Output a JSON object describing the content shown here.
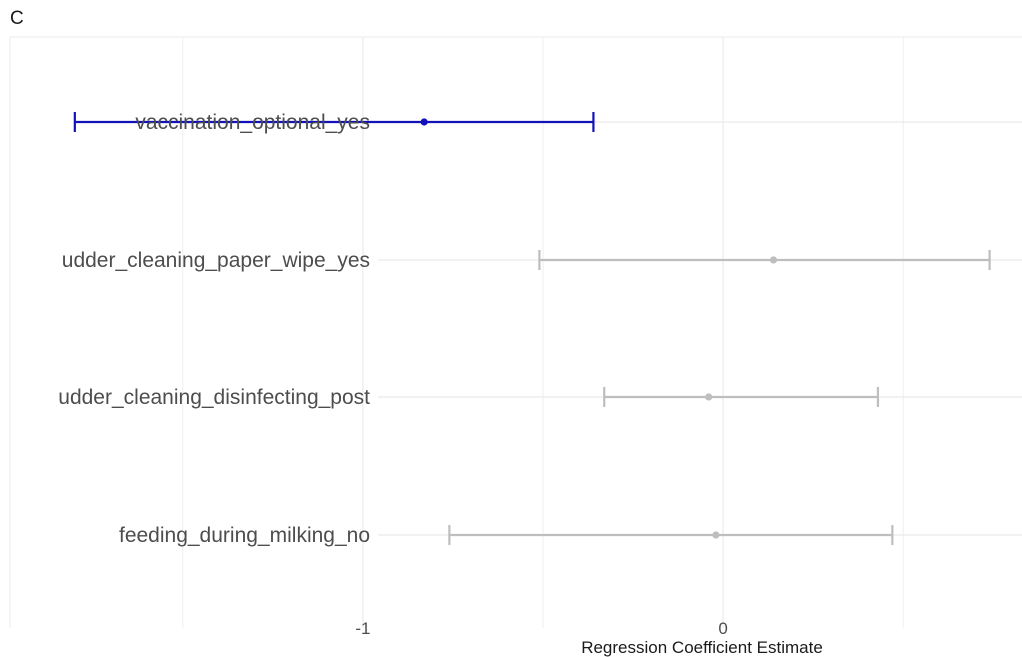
{
  "panel_label": "C",
  "chart_data": {
    "type": "forest",
    "title": "",
    "xlabel": "Regression Coefficient Estimate",
    "ylabel": "",
    "xlim": [
      -1.98,
      0.83
    ],
    "xticks": [
      -1,
      0
    ],
    "xtick_labels": [
      "-1",
      "0"
    ],
    "grid": true,
    "colors": {
      "significant": "#1212b8",
      "nonsignificant": "#bebebe",
      "grid": "#ebebeb"
    },
    "categories": [
      "vaccination_optional_yes",
      "udder_cleaning_paper_wipe_yes",
      "udder_cleaning_disinfecting_post",
      "feeding_during_milking_no"
    ],
    "estimates": [
      -0.83,
      0.14,
      -0.04,
      -0.02
    ],
    "ci_lower": [
      -1.8,
      -0.51,
      -0.33,
      -0.76
    ],
    "ci_upper": [
      -0.36,
      0.74,
      0.43,
      0.47
    ],
    "significant": [
      true,
      false,
      false,
      false
    ]
  }
}
